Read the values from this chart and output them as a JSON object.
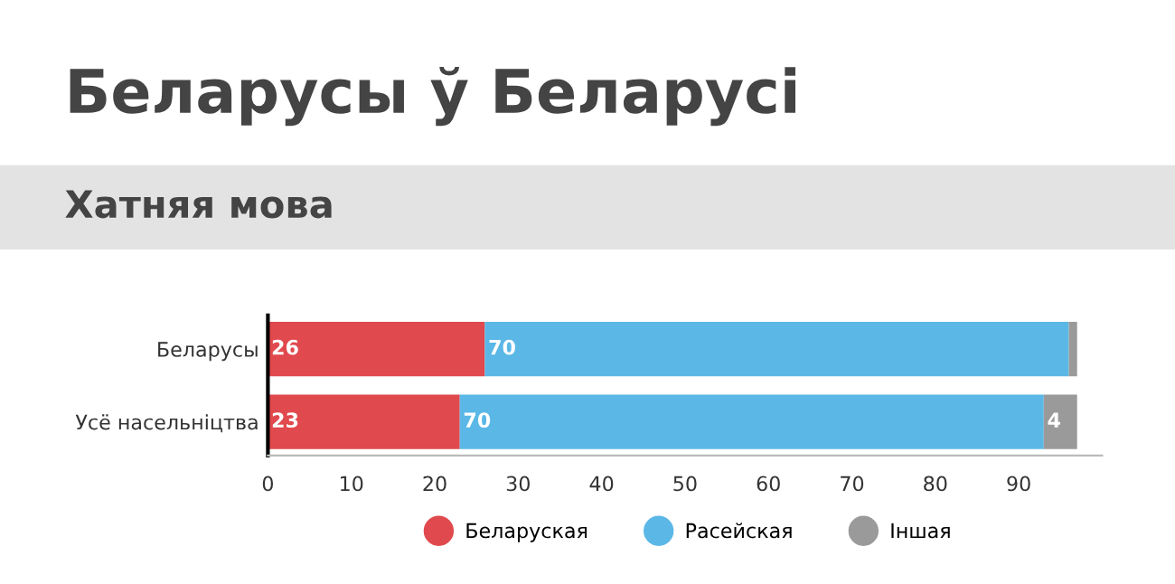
{
  "chart_data": {
    "type": "bar",
    "orientation": "horizontal",
    "stacked": true,
    "title": "Беларусы ў Беларусі",
    "subtitle": "Хатняя мова",
    "categories": [
      "Беларусы",
      "Усё насельніцтва"
    ],
    "series": [
      {
        "name": "Беларуская",
        "color": "#e0494d",
        "values": [
          26,
          23
        ],
        "value_labels": [
          "26",
          "23"
        ]
      },
      {
        "name": "Расейская",
        "color": "#5bb8e6",
        "values": [
          70,
          70
        ],
        "value_labels": [
          "70",
          "70"
        ]
      },
      {
        "name": "Іншая",
        "color": "#9a9a9a",
        "values": [
          1,
          4
        ],
        "value_labels": [
          null,
          "4"
        ]
      }
    ],
    "xlim": [
      0,
      100
    ],
    "xticks": [
      0,
      10,
      20,
      30,
      40,
      50,
      60,
      70,
      80,
      90
    ],
    "grid": false,
    "legend": "bottom"
  }
}
